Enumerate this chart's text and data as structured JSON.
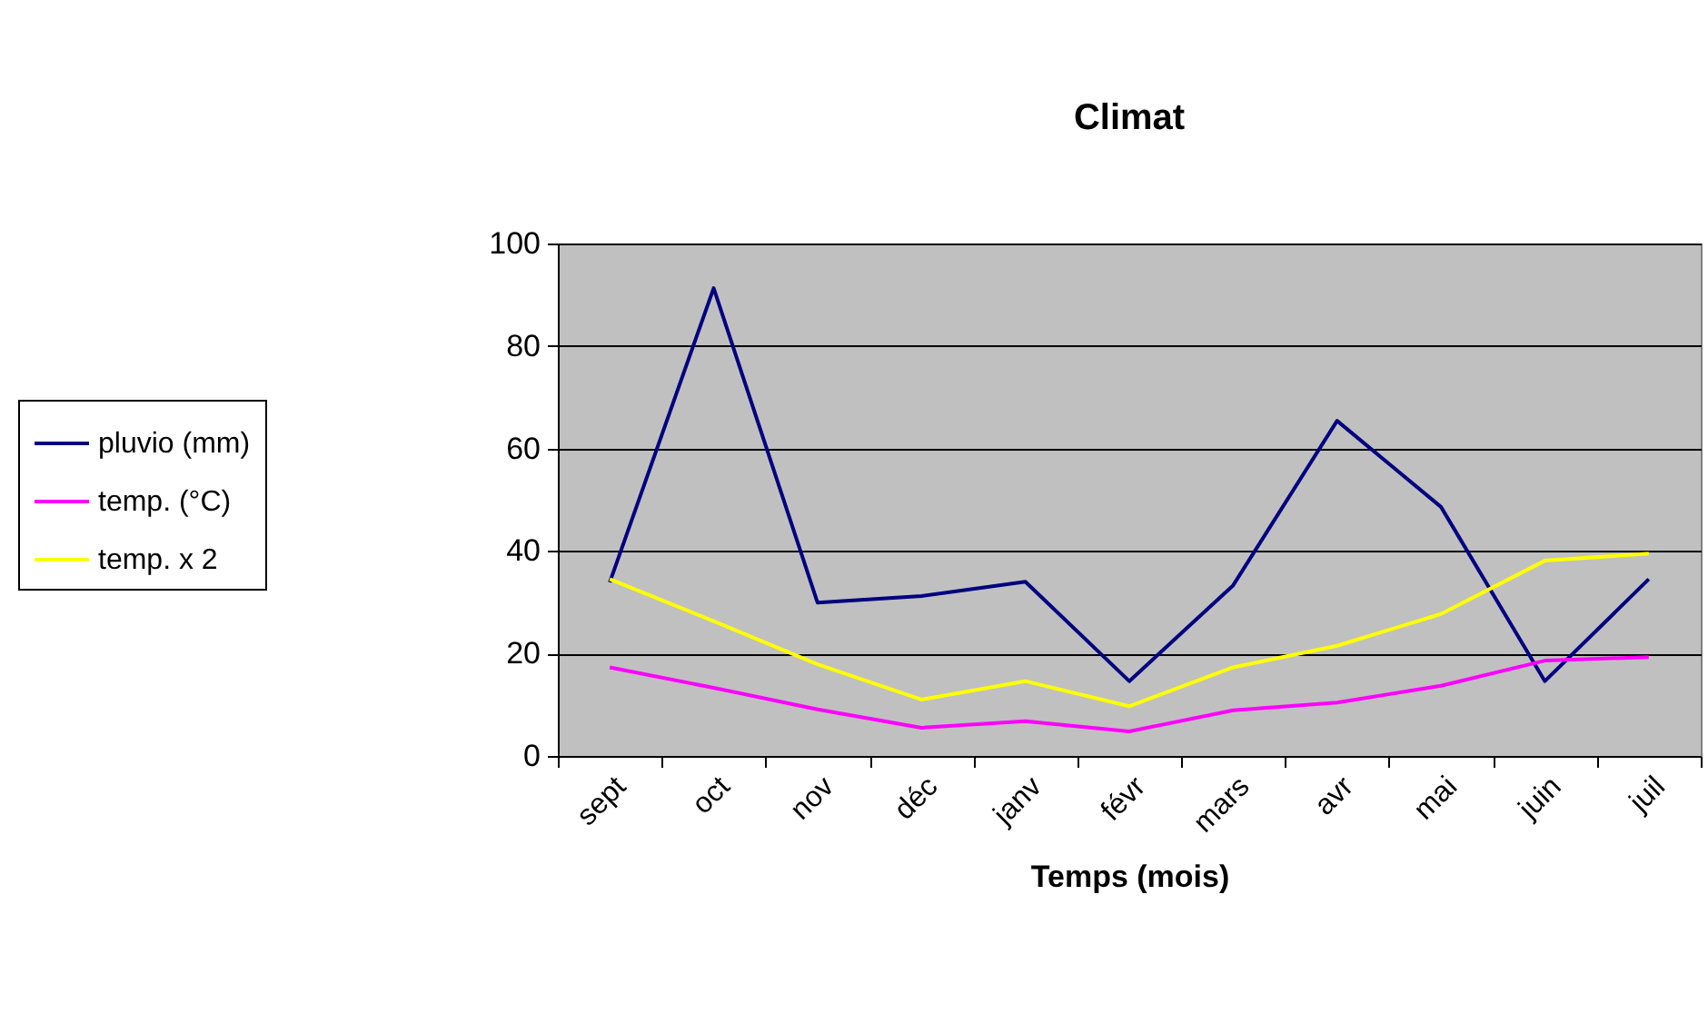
{
  "chart_data": {
    "type": "line",
    "title": "Climat",
    "xlabel": "Temps (mois)",
    "categories": [
      "sept",
      "oct",
      "nov",
      "déc",
      "janv",
      "févr",
      "mars",
      "avr",
      "mai",
      "juin",
      "juil"
    ],
    "series": [
      {
        "name": "pluvio (mm)",
        "color": "#000080",
        "values": [
          33.9,
          91.3,
          29.9,
          31.2,
          34,
          14.6,
          33.3,
          65.4,
          48.6,
          14.6,
          34.5
        ]
      },
      {
        "name": "temp. (°C)",
        "color": "#ff00ff",
        "values": [
          17.3,
          13.3,
          9.1,
          5.5,
          6.8,
          4.8,
          8.9,
          10.4,
          13.7,
          18.6,
          19.3
        ]
      },
      {
        "name": "temp. x 2",
        "color": "#ffff00",
        "values": [
          34.5,
          26.3,
          17.9,
          11,
          14.6,
          9.7,
          17.3,
          21.5,
          27.7,
          38.1,
          39.5
        ]
      }
    ],
    "ylim": [
      0,
      100
    ],
    "yticks": [
      0,
      20,
      40,
      60,
      80,
      100
    ],
    "grid": "y",
    "legend": "left",
    "marker": "none",
    "line_style": "solid"
  }
}
